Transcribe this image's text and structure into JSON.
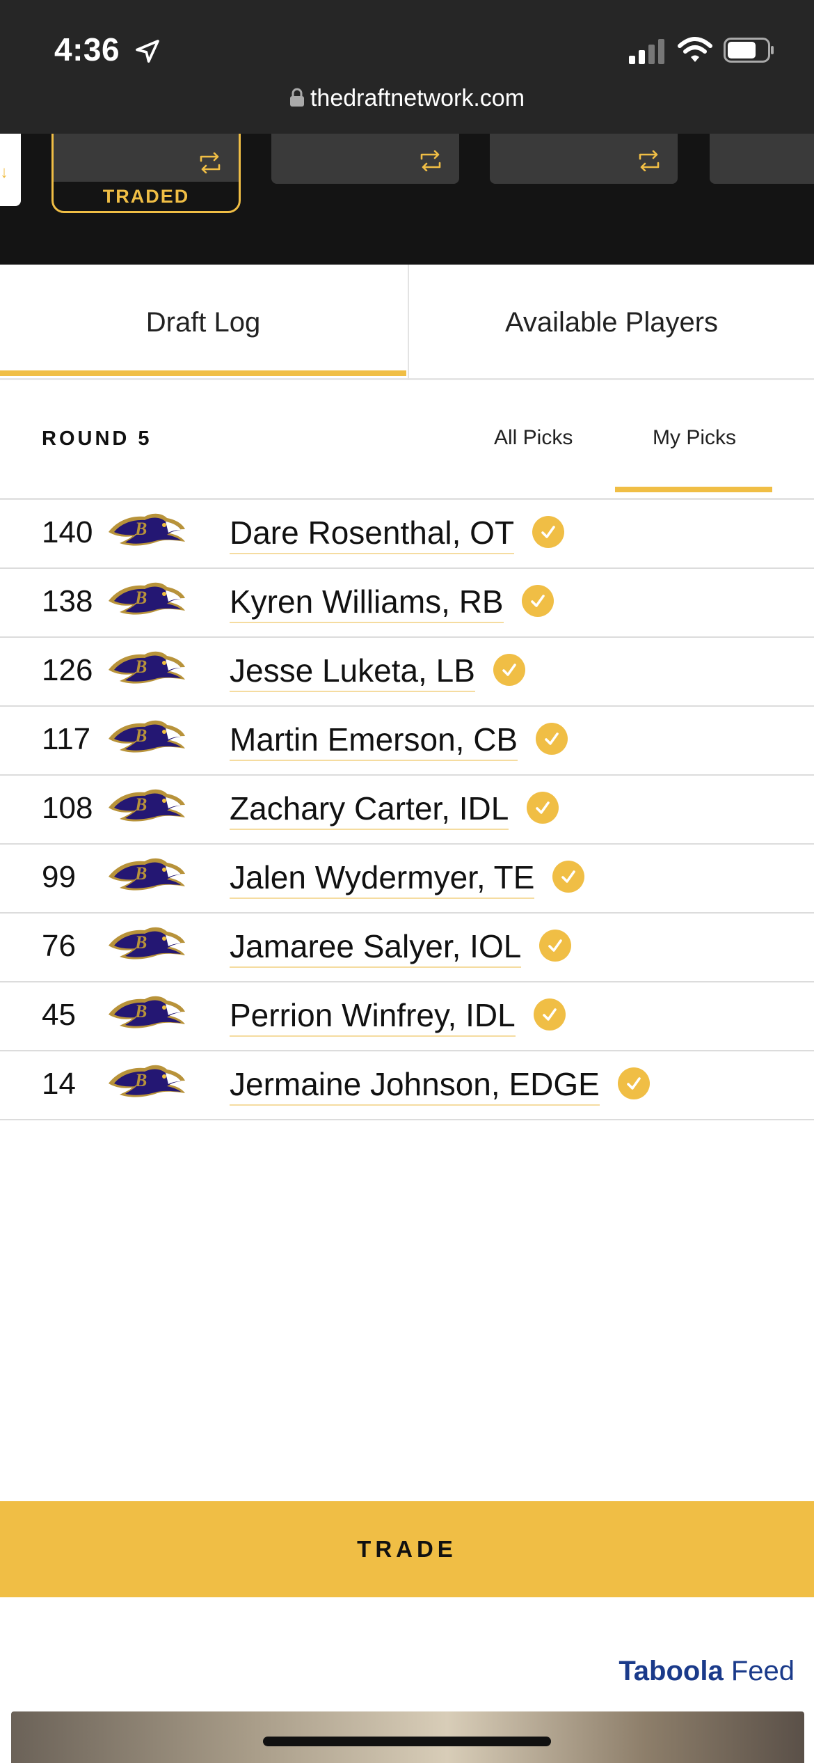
{
  "status_bar": {
    "time": "4:36",
    "url": "thedraftnetwork.com"
  },
  "draft_board": {
    "traded_label": "TRADED"
  },
  "tabs": [
    {
      "label": "Draft Log",
      "active": true
    },
    {
      "label": "Available Players",
      "active": false
    }
  ],
  "round": {
    "label": "ROUND 5"
  },
  "filters": {
    "all_picks": "All Picks",
    "my_picks": "My Picks",
    "active": "My Picks"
  },
  "picks": [
    {
      "number": "140",
      "player": "Dare Rosenthal",
      "position": "OT"
    },
    {
      "number": "138",
      "player": "Kyren Williams",
      "position": "RB"
    },
    {
      "number": "126",
      "player": "Jesse Luketa",
      "position": "LB"
    },
    {
      "number": "117",
      "player": "Martin Emerson",
      "position": "CB"
    },
    {
      "number": "108",
      "player": "Zachary Carter",
      "position": "IDL"
    },
    {
      "number": "99",
      "player": "Jalen Wydermyer",
      "position": "TE"
    },
    {
      "number": "76",
      "player": "Jamaree Salyer",
      "position": "IOL"
    },
    {
      "number": "45",
      "player": "Perrion Winfrey",
      "position": "IDL"
    },
    {
      "number": "14",
      "player": "Jermaine Johnson",
      "position": "EDGE"
    }
  ],
  "trade_button": {
    "label": "TRADE"
  },
  "taboola": {
    "brand": "Taboola",
    "feed": "Feed"
  },
  "colors": {
    "accent": "#f0be45",
    "dark": "#262626",
    "board": "#141414",
    "ravens_purple": "#241773"
  }
}
